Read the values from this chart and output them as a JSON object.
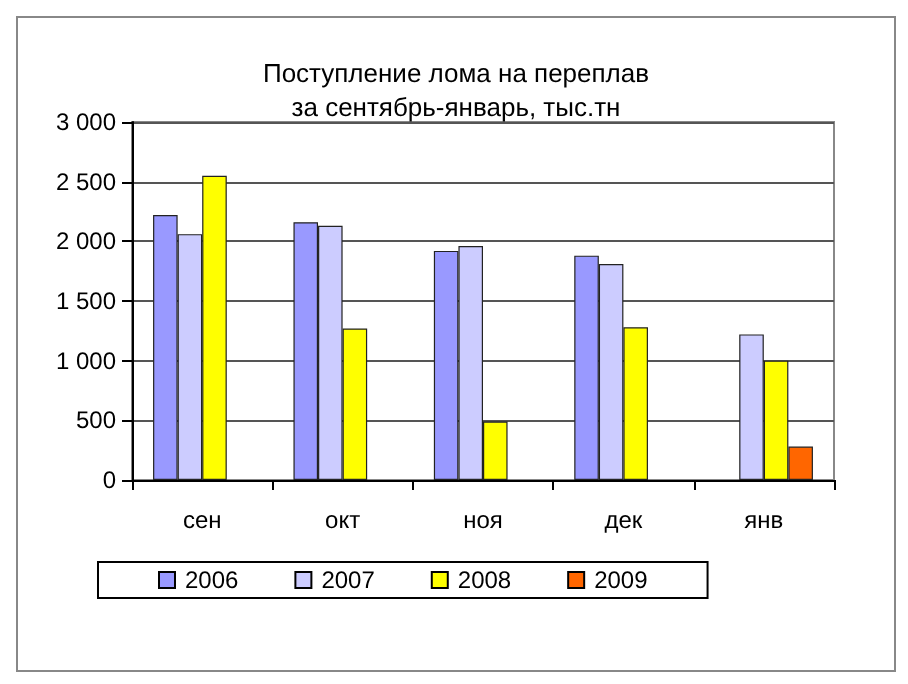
{
  "chart_data": {
    "type": "bar",
    "title": "Поступление лома на переплав\nза сентябрь-январь, тыс.тн",
    "categories": [
      "сен",
      "окт",
      "ноя",
      "дек",
      "янв"
    ],
    "series": [
      {
        "name": "2006",
        "color": "#9999ff",
        "values": [
          2220,
          2160,
          1920,
          1880,
          null
        ]
      },
      {
        "name": "2007",
        "color": "#ccccff",
        "values": [
          2060,
          2130,
          1960,
          1810,
          1220
        ]
      },
      {
        "name": "2008",
        "color": "#ffff00",
        "values": [
          2550,
          1270,
          490,
          1280,
          1000
        ]
      },
      {
        "name": "2009",
        "color": "#ff6600",
        "values": [
          null,
          null,
          null,
          null,
          280
        ]
      }
    ],
    "ylim": [
      0,
      3000
    ],
    "yticks": [
      0,
      500,
      {
        "value": 1000,
        "label": "1 000"
      },
      {
        "value": 1500,
        "label": "1 500"
      },
      {
        "value": 2000,
        "label": "2 000"
      },
      {
        "value": 2500,
        "label": "2 500"
      },
      {
        "value": 3000,
        "label": "3 000"
      }
    ],
    "grid": "y",
    "legend": "bottom"
  }
}
